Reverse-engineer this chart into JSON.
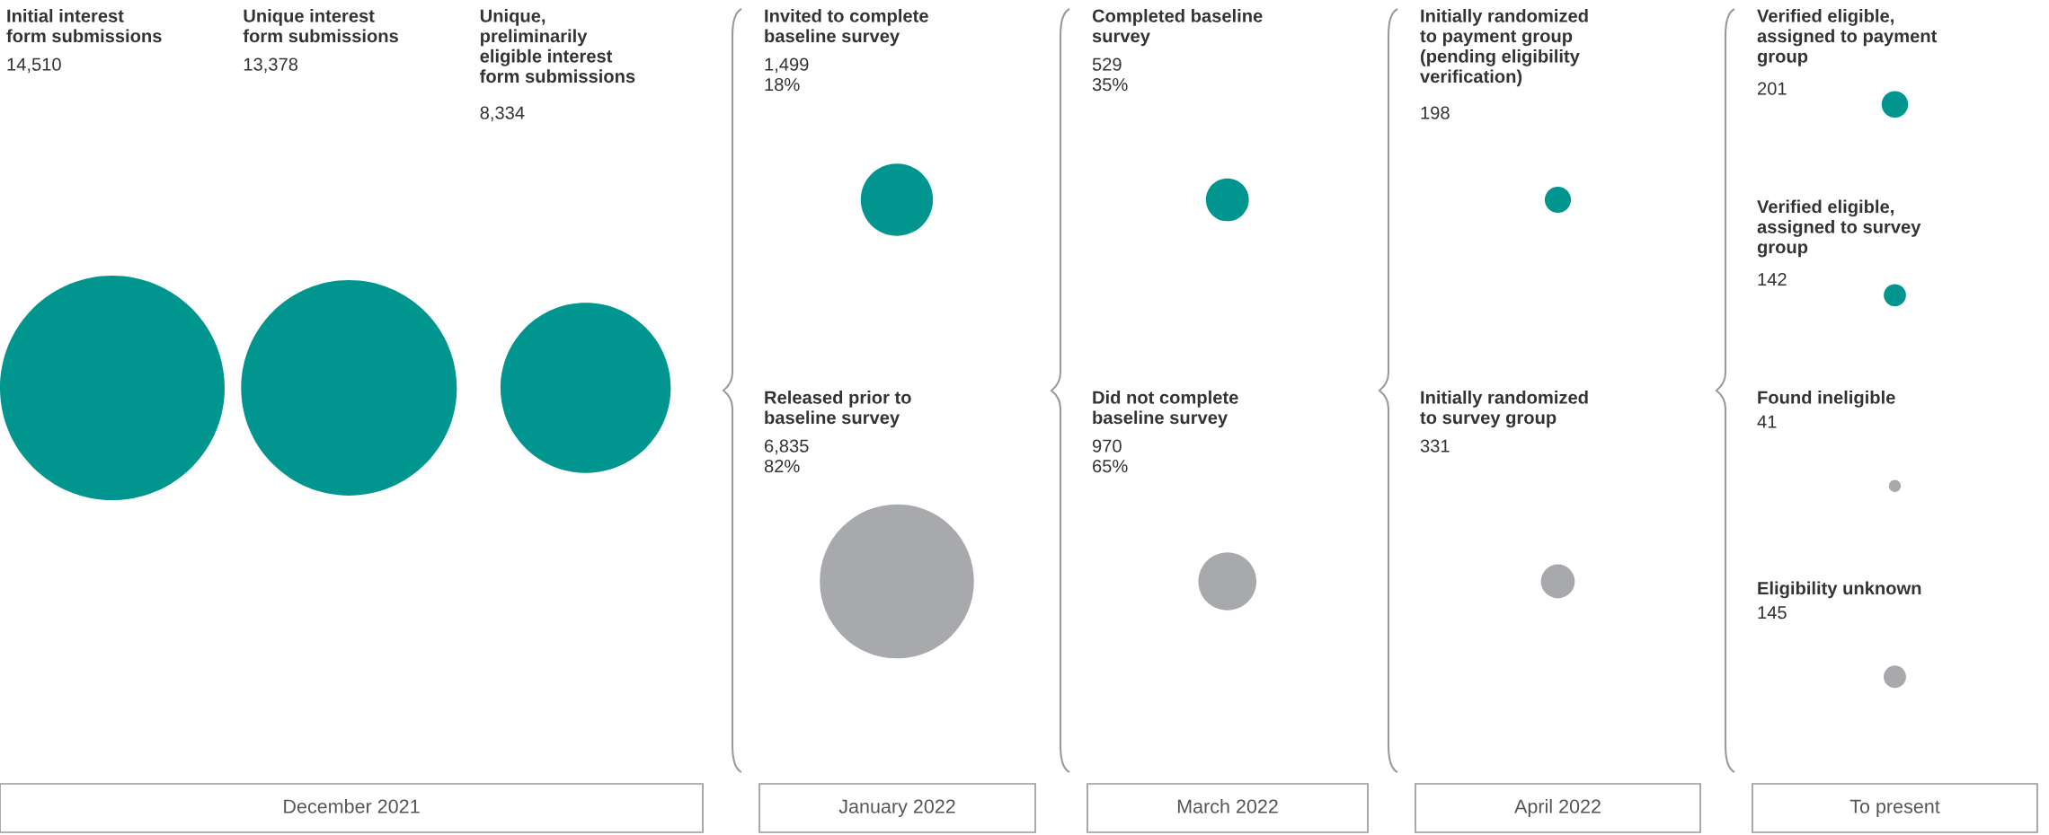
{
  "chart_data": [
    {
      "type": "other",
      "title": "December 2021",
      "categories": [
        "Initial interest\nform submissions",
        "Unique interest\nform submissions",
        "Unique,\npreliminarily\neligible interest\nform submissions"
      ],
      "values": [
        14510,
        13378,
        8334
      ],
      "value_labels": [
        "14,510",
        "13,378",
        "8,334"
      ],
      "colors": [
        "#00968f",
        "#00968f",
        "#00968f"
      ]
    },
    {
      "type": "other",
      "title": "January 2022",
      "categories": [
        "Invited to complete\nbaseline survey",
        "Released prior to\nbaseline survey"
      ],
      "values": [
        1499,
        6835
      ],
      "value_labels": [
        "1,499\n18%",
        "6,835\n82%"
      ],
      "colors": [
        "#00968f",
        "#a7a9ac"
      ]
    },
    {
      "type": "other",
      "title": "March 2022",
      "categories": [
        "Completed baseline\nsurvey",
        "Did not complete\nbaseline survey"
      ],
      "values": [
        529,
        970
      ],
      "value_labels": [
        "529\n35%",
        "970\n65%"
      ],
      "colors": [
        "#00968f",
        "#a7a9ac"
      ]
    },
    {
      "type": "other",
      "title": "April 2022",
      "categories": [
        "Initially randomized\nto payment group\n(pending eligibility\nverification)",
        "Initially randomized\nto survey group"
      ],
      "values": [
        198,
        331
      ],
      "value_labels": [
        "198",
        "331"
      ],
      "colors": [
        "#00968f",
        "#a7a9ac"
      ]
    },
    {
      "type": "other",
      "title": "To present",
      "categories": [
        "Verified eligible,\nassigned to payment\ngroup",
        "Verified eligible,\nassigned to survey\ngroup",
        "Found ineligible",
        "Eligibility unknown"
      ],
      "values": [
        201,
        142,
        41,
        145
      ],
      "value_labels": [
        "201",
        "142",
        "41",
        "145"
      ],
      "colors": [
        "#00968f",
        "#00968f",
        "#a7a9ac",
        "#a7a9ac"
      ]
    }
  ]
}
